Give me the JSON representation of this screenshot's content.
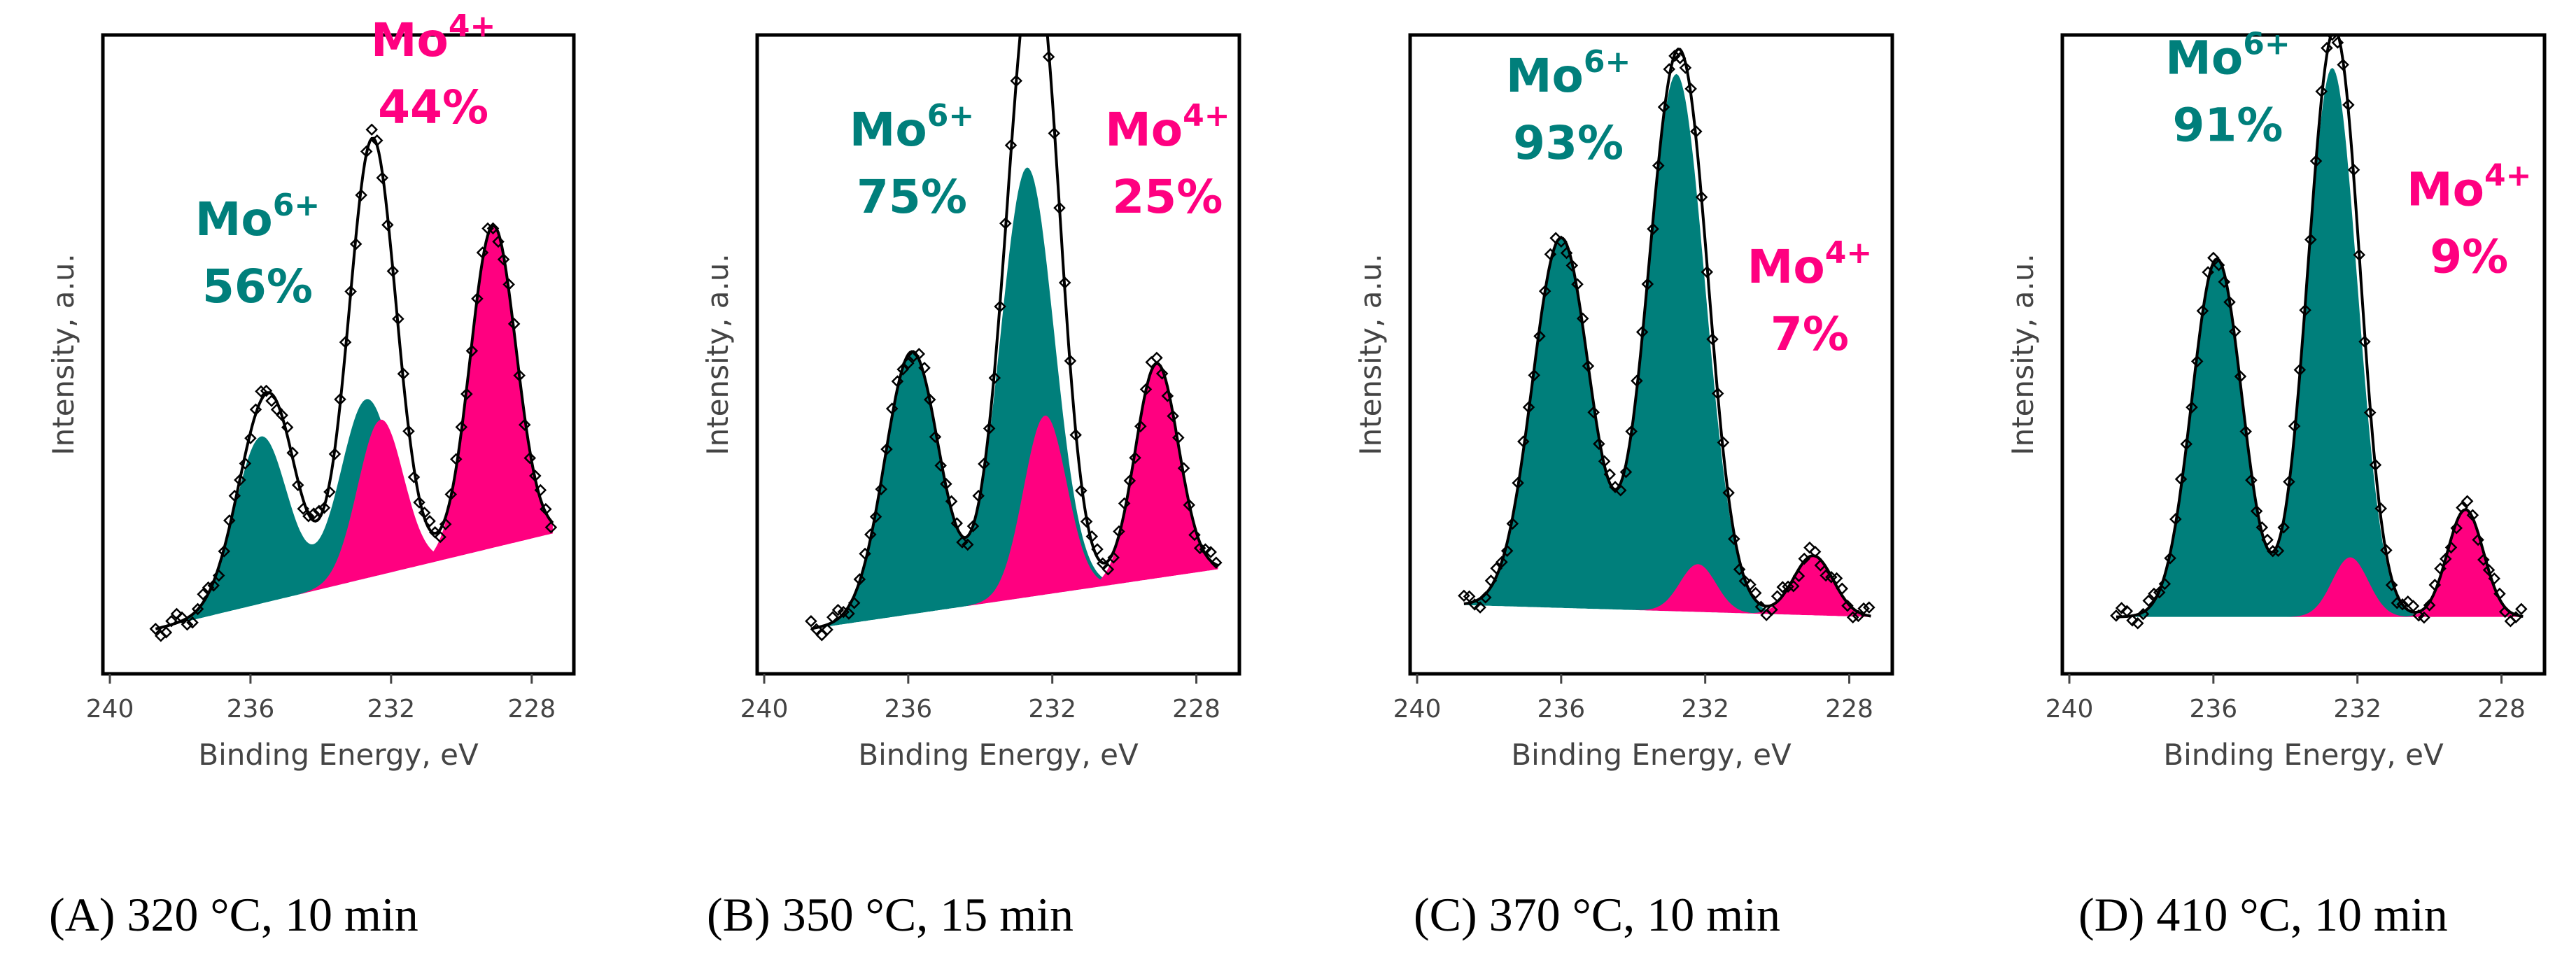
{
  "colors": {
    "mo6": "#007f7b",
    "mo4": "#ff0080",
    "envelope": "#000000",
    "background": "#ffffff"
  },
  "chart_data": [
    {
      "type": "area",
      "panel": "A",
      "caption": "(A)  320 °C, 10 min",
      "xlabel": "Binding Energy, eV",
      "ylabel": "Intensity, a.u.",
      "xlim": [
        240,
        227
      ],
      "x_reversed": true,
      "x_ticks": [
        240,
        236,
        232,
        228
      ],
      "y_ticks_labeled": false,
      "ylim": [
        0,
        1
      ],
      "baseline": {
        "x": [
          238.7,
          227.4
        ],
        "y": [
          0.04,
          0.2
        ]
      },
      "series": [
        {
          "component": "Mo6+",
          "color": "#007f7b",
          "peaks": [
            {
              "center": 235.7,
              "height": 0.28,
              "sigma": 0.75
            },
            {
              "center": 232.7,
              "height": 0.3,
              "sigma": 0.75
            }
          ]
        },
        {
          "component": "Mo4+",
          "color": "#ff0080",
          "peaks": [
            {
              "center": 232.3,
              "height": 0.26,
              "sigma": 0.65
            },
            {
              "center": 229.1,
              "height": 0.54,
              "sigma": 0.65
            }
          ]
        }
      ],
      "envelope_extra_peaks": [
        {
          "center": 232.6,
          "height": 0.2,
          "sigma": 0.55
        },
        {
          "center": 235.1,
          "height": 0.1,
          "sigma": 0.6
        }
      ],
      "annotations": [
        {
          "species": "Mo",
          "charge": "6+",
          "percent": "56%",
          "color": "#007f7b",
          "x": 235.8,
          "y": 0.7
        },
        {
          "species": "Mo",
          "charge": "4+",
          "percent": "44%",
          "color": "#ff0080",
          "x": 230.8,
          "y": 1.0
        }
      ]
    },
    {
      "type": "area",
      "panel": "B",
      "caption": "(B) 350 °C, 15 min",
      "xlabel": "Binding Energy, eV",
      "ylabel": "Intensity, a.u.",
      "xlim": [
        240,
        227
      ],
      "x_reversed": true,
      "x_ticks": [
        240,
        236,
        232,
        228
      ],
      "y_ticks_labeled": false,
      "ylim": [
        0,
        1
      ],
      "baseline": {
        "x": [
          238.7,
          227.4
        ],
        "y": [
          0.04,
          0.14
        ]
      },
      "series": [
        {
          "component": "Mo6+",
          "color": "#007f7b",
          "peaks": [
            {
              "center": 235.9,
              "height": 0.44,
              "sigma": 0.75
            },
            {
              "center": 232.7,
              "height": 0.72,
              "sigma": 0.75
            }
          ]
        },
        {
          "component": "Mo4+",
          "color": "#ff0080",
          "peaks": [
            {
              "center": 232.2,
              "height": 0.3,
              "sigma": 0.6
            },
            {
              "center": 229.1,
              "height": 0.36,
              "sigma": 0.6
            }
          ]
        }
      ],
      "envelope_extra_peaks": [
        {
          "center": 232.5,
          "height": 0.12,
          "sigma": 0.55
        }
      ],
      "annotations": [
        {
          "species": "Mo",
          "charge": "6+",
          "percent": "75%",
          "color": "#007f7b",
          "x": 235.9,
          "y": 0.85
        },
        {
          "species": "Mo",
          "charge": "4+",
          "percent": "25%",
          "color": "#ff0080",
          "x": 228.8,
          "y": 0.85
        }
      ]
    },
    {
      "type": "area",
      "panel": "C",
      "caption": "(C) 370 °C, 10 min",
      "xlabel": "Binding Energy, eV",
      "ylabel": "Intensity, a.u.",
      "xlim": [
        240,
        227
      ],
      "x_reversed": true,
      "x_ticks": [
        240,
        236,
        232,
        228
      ],
      "y_ticks_labeled": false,
      "ylim": [
        0,
        1
      ],
      "baseline": {
        "x": [
          238.7,
          227.4
        ],
        "y": [
          0.08,
          0.06
        ]
      },
      "series": [
        {
          "component": "Mo6+",
          "color": "#007f7b",
          "peaks": [
            {
              "center": 236.0,
              "height": 0.62,
              "sigma": 0.8
            },
            {
              "center": 232.8,
              "height": 0.9,
              "sigma": 0.8
            }
          ]
        },
        {
          "component": "Mo4+",
          "color": "#ff0080",
          "peaks": [
            {
              "center": 232.2,
              "height": 0.08,
              "sigma": 0.5
            },
            {
              "center": 229.0,
              "height": 0.1,
              "sigma": 0.55
            }
          ]
        }
      ],
      "envelope_extra_peaks": [],
      "annotations": [
        {
          "species": "Mo",
          "charge": "6+",
          "percent": "93%",
          "color": "#007f7b",
          "x": 235.8,
          "y": 0.94
        },
        {
          "species": "Mo",
          "charge": "4+",
          "percent": "7%",
          "color": "#ff0080",
          "x": 229.1,
          "y": 0.62
        }
      ]
    },
    {
      "type": "area",
      "panel": "D",
      "caption": "(D) 410 °C, 10 min",
      "xlabel": "Binding Energy, eV",
      "ylabel": "Intensity, a.u.",
      "xlim": [
        240,
        227
      ],
      "x_reversed": true,
      "x_ticks": [
        240,
        236,
        232,
        228
      ],
      "y_ticks_labeled": false,
      "ylim": [
        0,
        1
      ],
      "baseline": {
        "x": [
          238.7,
          227.4
        ],
        "y": [
          0.06,
          0.06
        ]
      },
      "series": [
        {
          "component": "Mo6+",
          "color": "#007f7b",
          "peaks": [
            {
              "center": 235.9,
              "height": 0.6,
              "sigma": 0.7
            },
            {
              "center": 232.7,
              "height": 0.92,
              "sigma": 0.7
            }
          ]
        },
        {
          "component": "Mo4+",
          "color": "#ff0080",
          "peaks": [
            {
              "center": 232.2,
              "height": 0.1,
              "sigma": 0.5
            },
            {
              "center": 229.0,
              "height": 0.18,
              "sigma": 0.5
            }
          ]
        }
      ],
      "envelope_extra_peaks": [],
      "annotations": [
        {
          "species": "Mo",
          "charge": "6+",
          "percent": "91%",
          "color": "#007f7b",
          "x": 235.6,
          "y": 0.97
        },
        {
          "species": "Mo",
          "charge": "4+",
          "percent": "9%",
          "color": "#ff0080",
          "x": 228.9,
          "y": 0.75
        }
      ]
    }
  ]
}
